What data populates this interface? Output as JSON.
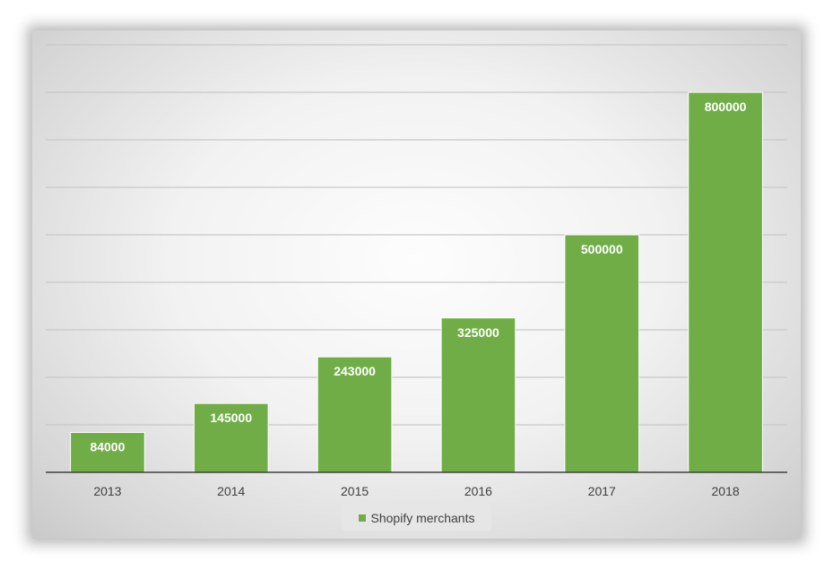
{
  "chart_data": {
    "type": "bar",
    "categories": [
      "2013",
      "2014",
      "2015",
      "2016",
      "2017",
      "2018"
    ],
    "series": [
      {
        "name": "Shopify merchants",
        "values": [
          84000,
          145000,
          243000,
          325000,
          500000,
          800000
        ],
        "color": "#70ad47"
      }
    ],
    "title": "",
    "xlabel": "",
    "ylabel": "",
    "ylim": [
      0,
      900000
    ],
    "grid": true,
    "data_labels": true,
    "legend_position": "bottom"
  },
  "legend": {
    "label": "Shopify merchants"
  }
}
